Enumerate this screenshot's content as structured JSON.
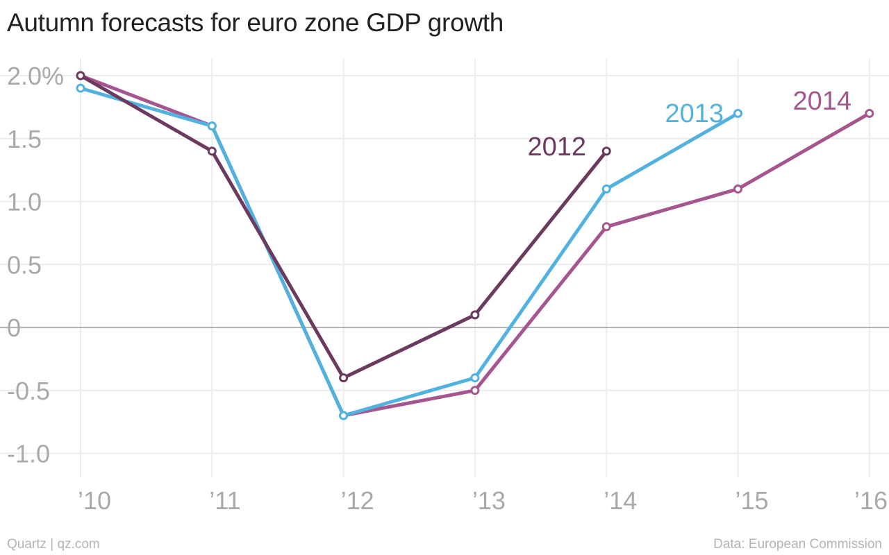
{
  "title": "Autumn forecasts for euro zone GDP growth",
  "footer": {
    "credit": "Quartz | qz.com",
    "source": "Data: European Commission"
  },
  "chart_data": {
    "type": "line",
    "x": [
      "’10",
      "’11",
      "’12",
      "’13",
      "’14",
      "’15",
      "’16"
    ],
    "ylim": [
      -1.1,
      2.0
    ],
    "y_ticks": [
      2.0,
      1.5,
      1.0,
      0.5,
      0,
      -0.5,
      -1.0
    ],
    "y_tick_labels": [
      "2.0%",
      "1.5",
      "1.0",
      "0.5",
      "0",
      "-0.5",
      "-1.0"
    ],
    "grid": true,
    "series": [
      {
        "name": "2014",
        "color": "#a6568f",
        "values": [
          2.0,
          1.6,
          -0.7,
          -0.5,
          0.8,
          1.1,
          1.7
        ]
      },
      {
        "name": "2013",
        "color": "#51b2e0",
        "values": [
          1.9,
          1.6,
          -0.7,
          -0.4,
          1.1,
          1.7,
          null
        ]
      },
      {
        "name": "2012",
        "color": "#6c3a5f",
        "values": [
          2.0,
          1.4,
          -0.4,
          0.1,
          1.4,
          null,
          null
        ]
      }
    ]
  }
}
